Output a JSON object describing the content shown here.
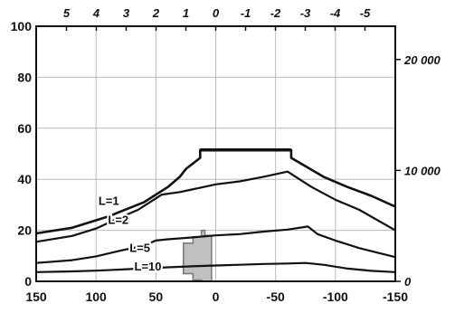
{
  "chart_data": {
    "type": "line",
    "x_bottom": {
      "ticks": [
        150,
        100,
        50,
        0,
        -50,
        -100,
        -150
      ],
      "labels": [
        "150",
        "100",
        "50",
        "0",
        "-50",
        "-100",
        "-150"
      ],
      "range": [
        150,
        -150
      ]
    },
    "x_top": {
      "ticks": [
        5,
        4,
        3,
        2,
        1,
        0,
        -1,
        -2,
        -3,
        -4,
        -5
      ],
      "labels": [
        "5",
        "4",
        "3",
        "2",
        "1",
        "0",
        "-1",
        "-2",
        "-3",
        "-4",
        "-5"
      ]
    },
    "y_left": {
      "ticks": [
        0,
        20,
        40,
        60,
        80,
        100
      ],
      "labels": [
        "0",
        "20",
        "40",
        "60",
        "80",
        "100"
      ],
      "range": [
        0,
        100
      ]
    },
    "y_right": {
      "ticks": [
        0,
        10000,
        20000
      ],
      "labels": [
        "0",
        "10 000",
        "20 000"
      ],
      "range_max": 23000
    },
    "grid": true,
    "series": [
      {
        "name": "",
        "points": [
          [
            150,
            18.8
          ],
          [
            120,
            21
          ],
          [
            90,
            25.4
          ],
          [
            60,
            31
          ],
          [
            40,
            37
          ],
          [
            30,
            41
          ],
          [
            25,
            44
          ],
          [
            13,
            48.4
          ],
          [
            13,
            51.5
          ],
          [
            -63,
            51.5
          ],
          [
            -63,
            48.4
          ],
          [
            -90,
            41
          ],
          [
            -110,
            37
          ],
          [
            -130,
            33.5
          ],
          [
            -150,
            29.3
          ]
        ]
      },
      {
        "name": "L=1",
        "points": [
          [
            150,
            15.5
          ],
          [
            120,
            17.8
          ],
          [
            100,
            20.7
          ],
          [
            80,
            25
          ],
          [
            65,
            28
          ],
          [
            55,
            31
          ],
          [
            45,
            34
          ],
          [
            30,
            35
          ],
          [
            20,
            36
          ],
          [
            10,
            37
          ],
          [
            0,
            38
          ],
          [
            -20,
            39.2
          ],
          [
            -40,
            41
          ],
          [
            -60,
            43
          ],
          [
            -80,
            37
          ],
          [
            -100,
            32
          ],
          [
            -120,
            28
          ],
          [
            -150,
            20
          ]
        ]
      },
      {
        "name": "L=2",
        "points": [
          [
            150,
            7.2
          ],
          [
            120,
            8.3
          ],
          [
            100,
            9.8
          ],
          [
            80,
            12
          ],
          [
            60,
            14
          ],
          [
            50,
            16
          ],
          [
            40,
            16.5
          ],
          [
            20,
            17.2
          ],
          [
            0,
            18
          ],
          [
            -20,
            18.5
          ],
          [
            -40,
            19.5
          ],
          [
            -60,
            20.3
          ],
          [
            -77,
            21.5
          ],
          [
            -85,
            18.5
          ],
          [
            -100,
            16
          ],
          [
            -120,
            13
          ],
          [
            -150,
            9.5
          ]
        ]
      },
      {
        "name": "L=5",
        "points": [
          [
            150,
            3.6
          ],
          [
            120,
            3.9
          ],
          [
            100,
            4.2
          ],
          [
            80,
            4.6
          ],
          [
            60,
            5.1
          ],
          [
            40,
            5.5
          ],
          [
            20,
            5.9
          ],
          [
            0,
            6.2
          ],
          [
            -20,
            6.5
          ],
          [
            -40,
            6.8
          ],
          [
            -60,
            7.0
          ],
          [
            -75,
            7.2
          ],
          [
            -90,
            6.5
          ],
          [
            -110,
            5
          ],
          [
            -130,
            4.1
          ],
          [
            -150,
            3.6
          ]
        ]
      },
      {
        "name": "L=10",
        "points": []
      }
    ],
    "shaded_region": {
      "points": [
        [
          3.5,
          0
        ],
        [
          3.5,
          18
        ],
        [
          9,
          18
        ],
        [
          9,
          20
        ],
        [
          12,
          20
        ],
        [
          12,
          17.5
        ],
        [
          19,
          17.5
        ],
        [
          19,
          15
        ],
        [
          27,
          15
        ],
        [
          27,
          3
        ],
        [
          19,
          3
        ],
        [
          19,
          0.5
        ],
        [
          12,
          0.5
        ],
        [
          12,
          0
        ],
        [
          3.5,
          0
        ]
      ]
    },
    "annotations": [
      {
        "text": "L=1",
        "x": 98,
        "y": 30
      },
      {
        "text": "L=2",
        "x": 90,
        "y": 22.5
      },
      {
        "text": "L=5",
        "x": 72,
        "y": 11.5
      },
      {
        "text": "L=10",
        "x": 68,
        "y": 4.2
      }
    ],
    "colors": {
      "line": "#111111",
      "grid": "#bbbbbb",
      "shade": "#c0c0c0",
      "shade_stroke": "#777777"
    }
  }
}
